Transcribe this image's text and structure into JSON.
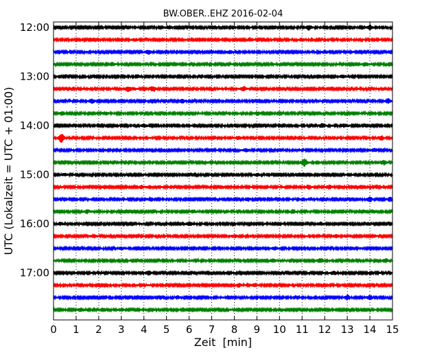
{
  "chart_data": {
    "type": "line",
    "title": "BW.OBER..EHZ 2016-02-04",
    "xlabel": "Zeit  [min]",
    "ylabel": "UTC (Lokalzeit = UTC + 01:00)",
    "xlim": [
      0,
      15
    ],
    "x_ticks": [
      0,
      1,
      2,
      3,
      4,
      5,
      6,
      7,
      8,
      9,
      10,
      11,
      12,
      13,
      14,
      15
    ],
    "y_tick_labels": [
      "12:00",
      "13:00",
      "14:00",
      "15:00",
      "16:00",
      "17:00"
    ],
    "y_tick_trace_index": [
      0,
      4,
      8,
      12,
      16,
      20
    ],
    "grid": "vertical-dotted",
    "trace_colors": [
      "#000000",
      "#ff0000",
      "#0000ff",
      "#008000"
    ],
    "series": [
      {
        "start": "12:00",
        "events": [
          [
            5.1,
            1.6
          ],
          [
            11.3,
            2.0
          ],
          [
            14.0,
            1.6
          ]
        ]
      },
      {
        "start": "12:15",
        "events": [
          [
            3.6,
            1.2
          ],
          [
            8.7,
            1.4
          ],
          [
            11.0,
            1.3
          ]
        ]
      },
      {
        "start": "12:30",
        "events": [
          [
            4.2,
            1.5
          ],
          [
            7.8,
            1.2
          ],
          [
            12.0,
            1.3
          ]
        ]
      },
      {
        "start": "12:45",
        "events": [
          [
            2.6,
            1.3
          ],
          [
            13.8,
            1.8
          ],
          [
            14.9,
            1.5
          ]
        ]
      },
      {
        "start": "13:00",
        "events": [
          [
            3.7,
            1.4
          ],
          [
            12.8,
            1.5
          ]
        ]
      },
      {
        "start": "13:15",
        "events": [
          [
            3.3,
            2.4
          ],
          [
            4.4,
            2.6
          ],
          [
            8.4,
            2.0
          ]
        ]
      },
      {
        "start": "13:30",
        "events": [
          [
            1.7,
            1.6
          ],
          [
            5.7,
            1.5
          ],
          [
            14.8,
            1.8
          ]
        ]
      },
      {
        "start": "13:45",
        "events": [
          [
            0.4,
            1.4
          ],
          [
            2.3,
            1.3
          ],
          [
            9.0,
            1.6
          ]
        ]
      },
      {
        "start": "14:00",
        "events": [
          [
            4.0,
            1.7
          ],
          [
            11.9,
            1.8
          ],
          [
            12.9,
            1.4
          ]
        ]
      },
      {
        "start": "14:15",
        "events": [
          [
            0.35,
            4.2
          ],
          [
            8.2,
            1.4
          ],
          [
            14.5,
            1.6
          ]
        ]
      },
      {
        "start": "14:30",
        "events": [
          [
            8.5,
            1.3
          ],
          [
            14.2,
            1.3
          ]
        ]
      },
      {
        "start": "14:45",
        "events": [
          [
            11.1,
            3.2
          ],
          [
            14.6,
            2.0
          ],
          [
            7.0,
            1.3
          ]
        ]
      },
      {
        "start": "15:00",
        "events": [
          [
            0.5,
            1.0
          ],
          [
            9.0,
            1.2
          ]
        ]
      },
      {
        "start": "15:15",
        "events": [
          [
            3.9,
            1.4
          ],
          [
            11.3,
            1.8
          ],
          [
            12.2,
            1.6
          ]
        ]
      },
      {
        "start": "15:30",
        "events": [
          [
            4.3,
            1.5
          ],
          [
            8.6,
            1.6
          ],
          [
            14.0,
            1.8
          ],
          [
            14.9,
            1.7
          ]
        ]
      },
      {
        "start": "15:45",
        "events": [
          [
            1.5,
            1.3
          ],
          [
            6.2,
            1.2
          ],
          [
            10.6,
            1.4
          ]
        ]
      },
      {
        "start": "16:00",
        "events": [
          [
            6.0,
            1.6
          ],
          [
            11.8,
            1.4
          ],
          [
            0.3,
            1.3
          ]
        ]
      },
      {
        "start": "16:15",
        "events": [
          [
            1.8,
            1.4
          ],
          [
            8.0,
            1.3
          ],
          [
            12.5,
            1.5
          ]
        ]
      },
      {
        "start": "16:30",
        "events": [
          [
            3.0,
            1.2
          ],
          [
            9.8,
            1.3
          ]
        ]
      },
      {
        "start": "16:45",
        "events": [
          [
            9.7,
            1.8
          ],
          [
            11.8,
            2.2
          ],
          [
            14.7,
            1.5
          ]
        ]
      },
      {
        "start": "17:00",
        "events": [
          [
            4.2,
            1.6
          ],
          [
            12.4,
            1.6
          ]
        ]
      },
      {
        "start": "17:15",
        "events": [
          [
            8.2,
            1.5
          ],
          [
            8.9,
            1.4
          ]
        ]
      },
      {
        "start": "17:30",
        "events": [
          [
            5.5,
            1.3
          ],
          [
            13.0,
            2.0
          ],
          [
            14.0,
            1.8
          ]
        ]
      },
      {
        "start": "17:45",
        "events": [
          [
            1.2,
            1.7
          ],
          [
            2.2,
            1.4
          ]
        ]
      }
    ]
  }
}
